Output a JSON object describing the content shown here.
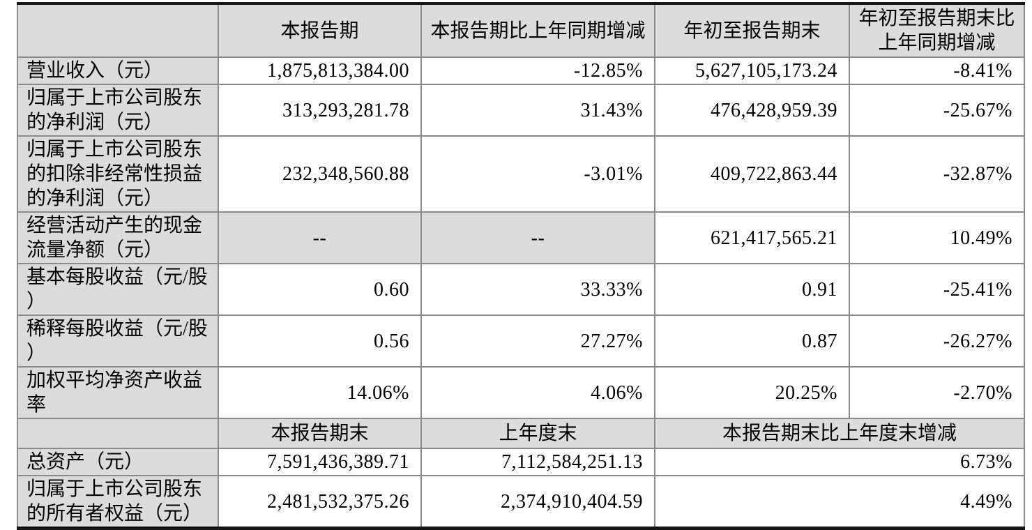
{
  "document": {
    "kind": "financial-report-key-figures-table",
    "language": "zh-CN"
  },
  "colors": {
    "cell_shading": "#dcdcdc",
    "inner_border": "#8a8a8a",
    "outer_rule": "#161616",
    "text": "#000000",
    "data_cell_bg": "#ffffff"
  },
  "table": {
    "rows": [
      {
        "kind": "header",
        "cells": [
          {
            "text": ""
          },
          {
            "text": "本报告期"
          },
          {
            "text": "本报告期比上年同期增减"
          },
          {
            "text": "年初至报告期末"
          },
          {
            "text": "年初至报告期末比上年同期增减"
          }
        ]
      },
      {
        "kind": "data",
        "cells": [
          {
            "text": "营业收入（元）"
          },
          {
            "text": "1,875,813,384.00"
          },
          {
            "text": "-12.85%"
          },
          {
            "text": "5,627,105,173.24"
          },
          {
            "text": "-8.41%"
          }
        ]
      },
      {
        "kind": "data",
        "cells": [
          {
            "text": "归属于上市公司股东的净利润（元）"
          },
          {
            "text": "313,293,281.78"
          },
          {
            "text": "31.43%"
          },
          {
            "text": "476,428,959.39"
          },
          {
            "text": "-25.67%"
          }
        ]
      },
      {
        "kind": "data",
        "cells": [
          {
            "text": "归属于上市公司股东的扣除非经常性损益的净利润（元）"
          },
          {
            "text": "232,348,560.88"
          },
          {
            "text": "-3.01%"
          },
          {
            "text": "409,722,863.44"
          },
          {
            "text": "-32.87%"
          }
        ]
      },
      {
        "kind": "data",
        "cells": [
          {
            "text": "经营活动产生的现金流量净额（元）"
          },
          {
            "text": "--",
            "muted": true
          },
          {
            "text": "--",
            "muted": true
          },
          {
            "text": "621,417,565.21"
          },
          {
            "text": "10.49%"
          }
        ]
      },
      {
        "kind": "data",
        "cells": [
          {
            "text": "基本每股收益（元/股）"
          },
          {
            "text": "0.60"
          },
          {
            "text": "33.33%"
          },
          {
            "text": "0.91"
          },
          {
            "text": "-25.41%"
          }
        ]
      },
      {
        "kind": "data",
        "cells": [
          {
            "text": "稀释每股收益（元/股）"
          },
          {
            "text": "0.56"
          },
          {
            "text": "27.27%"
          },
          {
            "text": "0.87"
          },
          {
            "text": "-26.27%"
          }
        ]
      },
      {
        "kind": "data",
        "cells": [
          {
            "text": "加权平均净资产收益率"
          },
          {
            "text": "14.06%"
          },
          {
            "text": "4.06%"
          },
          {
            "text": "20.25%"
          },
          {
            "text": "-2.70%"
          }
        ]
      },
      {
        "kind": "header",
        "cells": [
          {
            "text": ""
          },
          {
            "text": "本报告期末"
          },
          {
            "text": "上年度末"
          },
          {
            "text": "本报告期末比上年度末增减",
            "colspan": 2
          }
        ]
      },
      {
        "kind": "data",
        "cells": [
          {
            "text": "总资产（元）"
          },
          {
            "text": "7,591,436,389.71"
          },
          {
            "text": "7,112,584,251.13"
          },
          {
            "text": "6.73%",
            "colspan": 2
          }
        ]
      },
      {
        "kind": "data",
        "cells": [
          {
            "text": "归属于上市公司股东的所有者权益（元）"
          },
          {
            "text": "2,481,532,375.26"
          },
          {
            "text": "2,374,910,404.59"
          },
          {
            "text": "4.49%",
            "colspan": 2
          }
        ]
      }
    ]
  }
}
